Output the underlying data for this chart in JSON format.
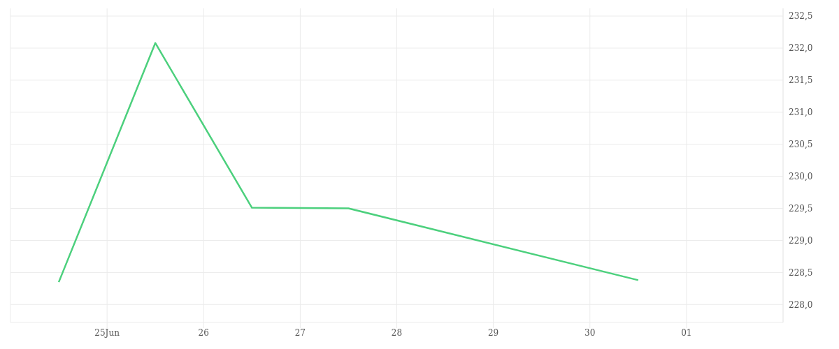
{
  "chart_data": {
    "type": "line",
    "x": [
      "--06-24T12:00",
      "--06-25T12:00",
      "--06-26T12:00",
      "--06-27T12:00",
      "--06-30T12:00"
    ],
    "series": [
      {
        "color": "#4cd07d",
        "values": [
          228.35,
          232.08,
          229.51,
          229.5,
          228.38
        ]
      }
    ],
    "xlim": [
      "--06-24T00:00",
      "--07-02T00:00"
    ],
    "xticks": [
      {
        "value": "--06-25",
        "label": "25Jun"
      },
      {
        "value": "--06-26",
        "label": "26"
      },
      {
        "value": "--06-27",
        "label": "27"
      },
      {
        "value": "--06-28",
        "label": "28"
      },
      {
        "value": "--06-29",
        "label": "29"
      },
      {
        "value": "--06-30",
        "label": "30"
      },
      {
        "value": "--07-01",
        "label": "01"
      }
    ],
    "ylim": [
      227.72,
      232.62
    ],
    "yticks": [
      {
        "value": 228,
        "label": "228,0"
      },
      {
        "value": 228.5,
        "label": "228,5"
      },
      {
        "value": 229,
        "label": "229,0"
      },
      {
        "value": 229.5,
        "label": "229,5"
      },
      {
        "value": 230,
        "label": "230,0"
      },
      {
        "value": 230.5,
        "label": "230,5"
      },
      {
        "value": 231,
        "label": "231,0"
      },
      {
        "value": 231.5,
        "label": "231,5"
      },
      {
        "value": 232,
        "label": "232,0"
      },
      {
        "value": 232.5,
        "label": "232,5"
      }
    ],
    "grid": true,
    "marker": "none",
    "line_style": "solid",
    "legend": false
  }
}
